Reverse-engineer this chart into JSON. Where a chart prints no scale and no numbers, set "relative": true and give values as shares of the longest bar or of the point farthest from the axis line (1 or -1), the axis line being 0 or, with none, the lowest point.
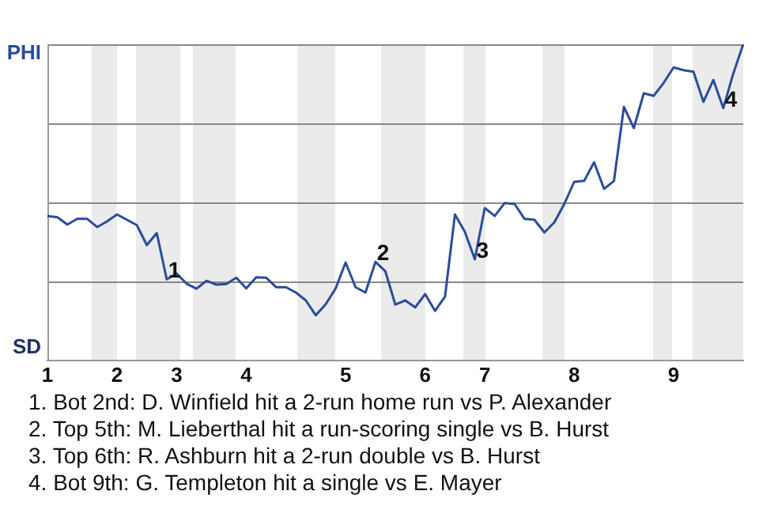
{
  "chart_data": {
    "type": "line",
    "relative": true,
    "marker": "none",
    "legend": false,
    "categories": [
      "1",
      null,
      null,
      null,
      null,
      null,
      null,
      "2",
      null,
      null,
      null,
      null,
      null,
      "3",
      null,
      null,
      null,
      null,
      null,
      null,
      "4",
      null,
      null,
      null,
      null,
      null,
      null,
      null,
      null,
      null,
      "5",
      null,
      null,
      null,
      null,
      null,
      null,
      null,
      "6",
      null,
      null,
      null,
      null,
      null,
      "7",
      null,
      null,
      null,
      null,
      null,
      null,
      null,
      null,
      "8",
      null,
      null,
      null,
      null,
      null,
      null,
      null,
      null,
      null,
      "9",
      null,
      null,
      null,
      null,
      null,
      null,
      null
    ],
    "series": [
      {
        "color": "#2b4c9b",
        "values": [
          0.457,
          0.453,
          0.43,
          0.448,
          0.448,
          0.422,
          0.44,
          0.462,
          0.445,
          0.428,
          0.365,
          0.403,
          0.257,
          0.275,
          0.243,
          0.227,
          0.252,
          0.24,
          0.242,
          0.262,
          0.228,
          0.263,
          0.262,
          0.232,
          0.232,
          0.215,
          0.19,
          0.143,
          0.178,
          0.228,
          0.31,
          0.232,
          0.215,
          0.312,
          0.282,
          0.177,
          0.19,
          0.168,
          0.21,
          0.157,
          0.202,
          0.462,
          0.407,
          0.32,
          0.482,
          0.457,
          0.498,
          0.495,
          0.448,
          0.445,
          0.405,
          0.437,
          0.495,
          0.565,
          0.568,
          0.627,
          0.543,
          0.568,
          0.802,
          0.735,
          0.845,
          0.837,
          0.878,
          0.927,
          0.918,
          0.913,
          0.818,
          0.887,
          0.798,
          0.907,
          1
        ]
      }
    ],
    "ref_lines": [
      {
        "axis": "y",
        "value": 0.25,
        "color": "#888888"
      },
      {
        "axis": "y",
        "value": 0.5,
        "color": "#888888"
      },
      {
        "axis": "y",
        "value": 0.75,
        "color": "#888888"
      },
      {
        "axis": "y",
        "value": 1,
        "color": "#888888"
      }
    ],
    "annotations": [
      "PHI",
      "SD",
      {
        "text": "1",
        "y": 0.257
      },
      {
        "text": "2",
        "y": 0.312
      },
      {
        "text": "3",
        "y": 0.32
      },
      {
        "text": "4",
        "y": 0.798
      },
      "1. Bot 2nd: D. Winfield hit a 2-run home run vs P. Alexander",
      "2. Top 5th: M. Lieberthal hit a run-scoring single vs B. Hurst",
      "3. Top 6th: R. Ashburn hit a 2-run double vs B. Hurst",
      "4. Bot 9th: G. Templeton hit a single vs E. Mayer"
    ]
  }
}
